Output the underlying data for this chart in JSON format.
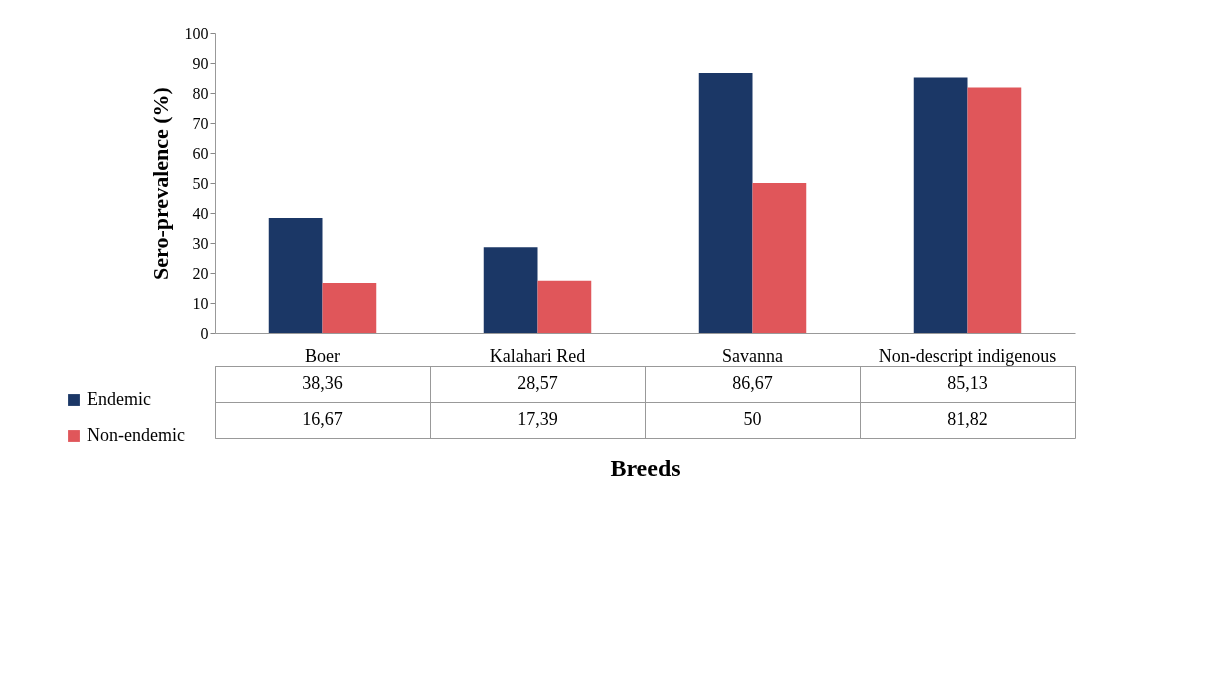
{
  "chart_data": {
    "type": "bar",
    "xlabel": "Breeds",
    "ylabel": "Sero-prevalence (%)",
    "categories": [
      "Boer",
      "Kalahari Red",
      "Savanna",
      "Non-descript indigenous"
    ],
    "series": [
      {
        "name": "Endemic",
        "color": "#1b3766",
        "values": [
          38.36,
          28.57,
          86.67,
          85.13
        ],
        "value_labels": [
          "38,36",
          "28,57",
          "86,67",
          "85,13"
        ]
      },
      {
        "name": "Non-endemic",
        "color": "#e0565a",
        "values": [
          16.67,
          17.39,
          50,
          81.82
        ],
        "value_labels": [
          "16,67",
          "17,39",
          "50",
          "81,82"
        ]
      }
    ],
    "ylim": [
      0,
      100
    ],
    "yticks": [
      0,
      10,
      20,
      30,
      40,
      50,
      60,
      70,
      80,
      90,
      100
    ],
    "legend": "left"
  }
}
